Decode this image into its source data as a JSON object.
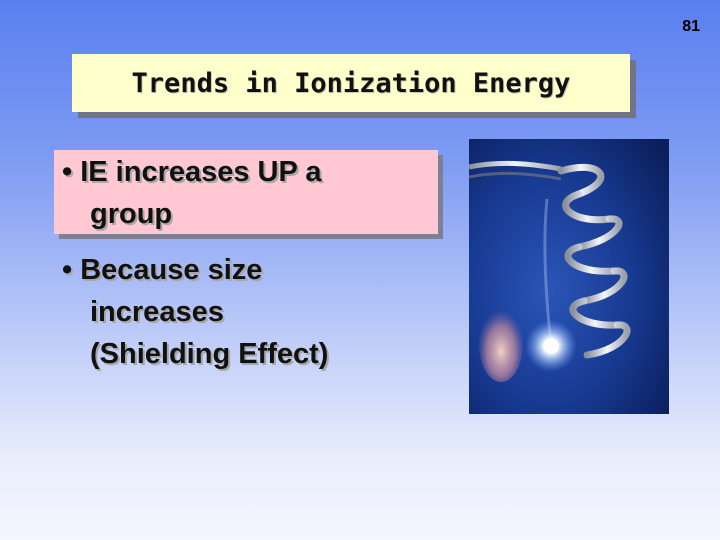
{
  "slide": {
    "number": "81",
    "title": "Trends in Ionization Energy",
    "bullets": [
      {
        "lines": [
          "• IE increases UP a",
          "group"
        ]
      },
      {
        "lines": [
          "• Because size",
          "increases",
          "(Shielding Effect)"
        ]
      }
    ]
  },
  "image": {
    "subject": "flame-wire-coil-photo"
  },
  "colors": {
    "title_box": "#ffffcc",
    "bullet_highlight": "#ffc8d2",
    "background_top": "#5a7ff0",
    "background_bottom": "#f4f6fe"
  }
}
